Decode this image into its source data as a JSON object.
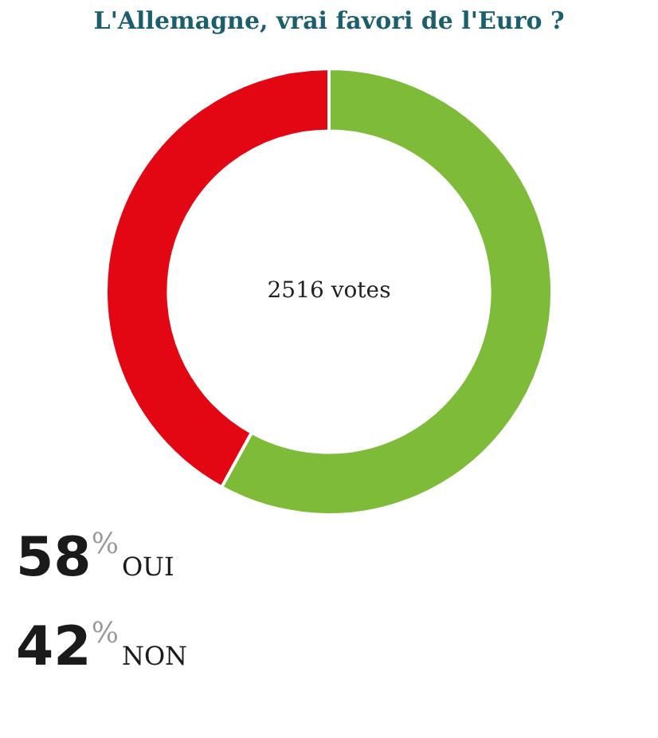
{
  "chart_data": {
    "type": "donut",
    "title": "L'Allemagne, vrai favori de l'Euro ?",
    "categories": [
      "OUI",
      "NON"
    ],
    "values": [
      58,
      42
    ],
    "colors": [
      "#7dbb38",
      "#e30613"
    ],
    "value_labels": [
      "58%",
      "42%"
    ],
    "annotations": [
      "2516 votes"
    ]
  }
}
